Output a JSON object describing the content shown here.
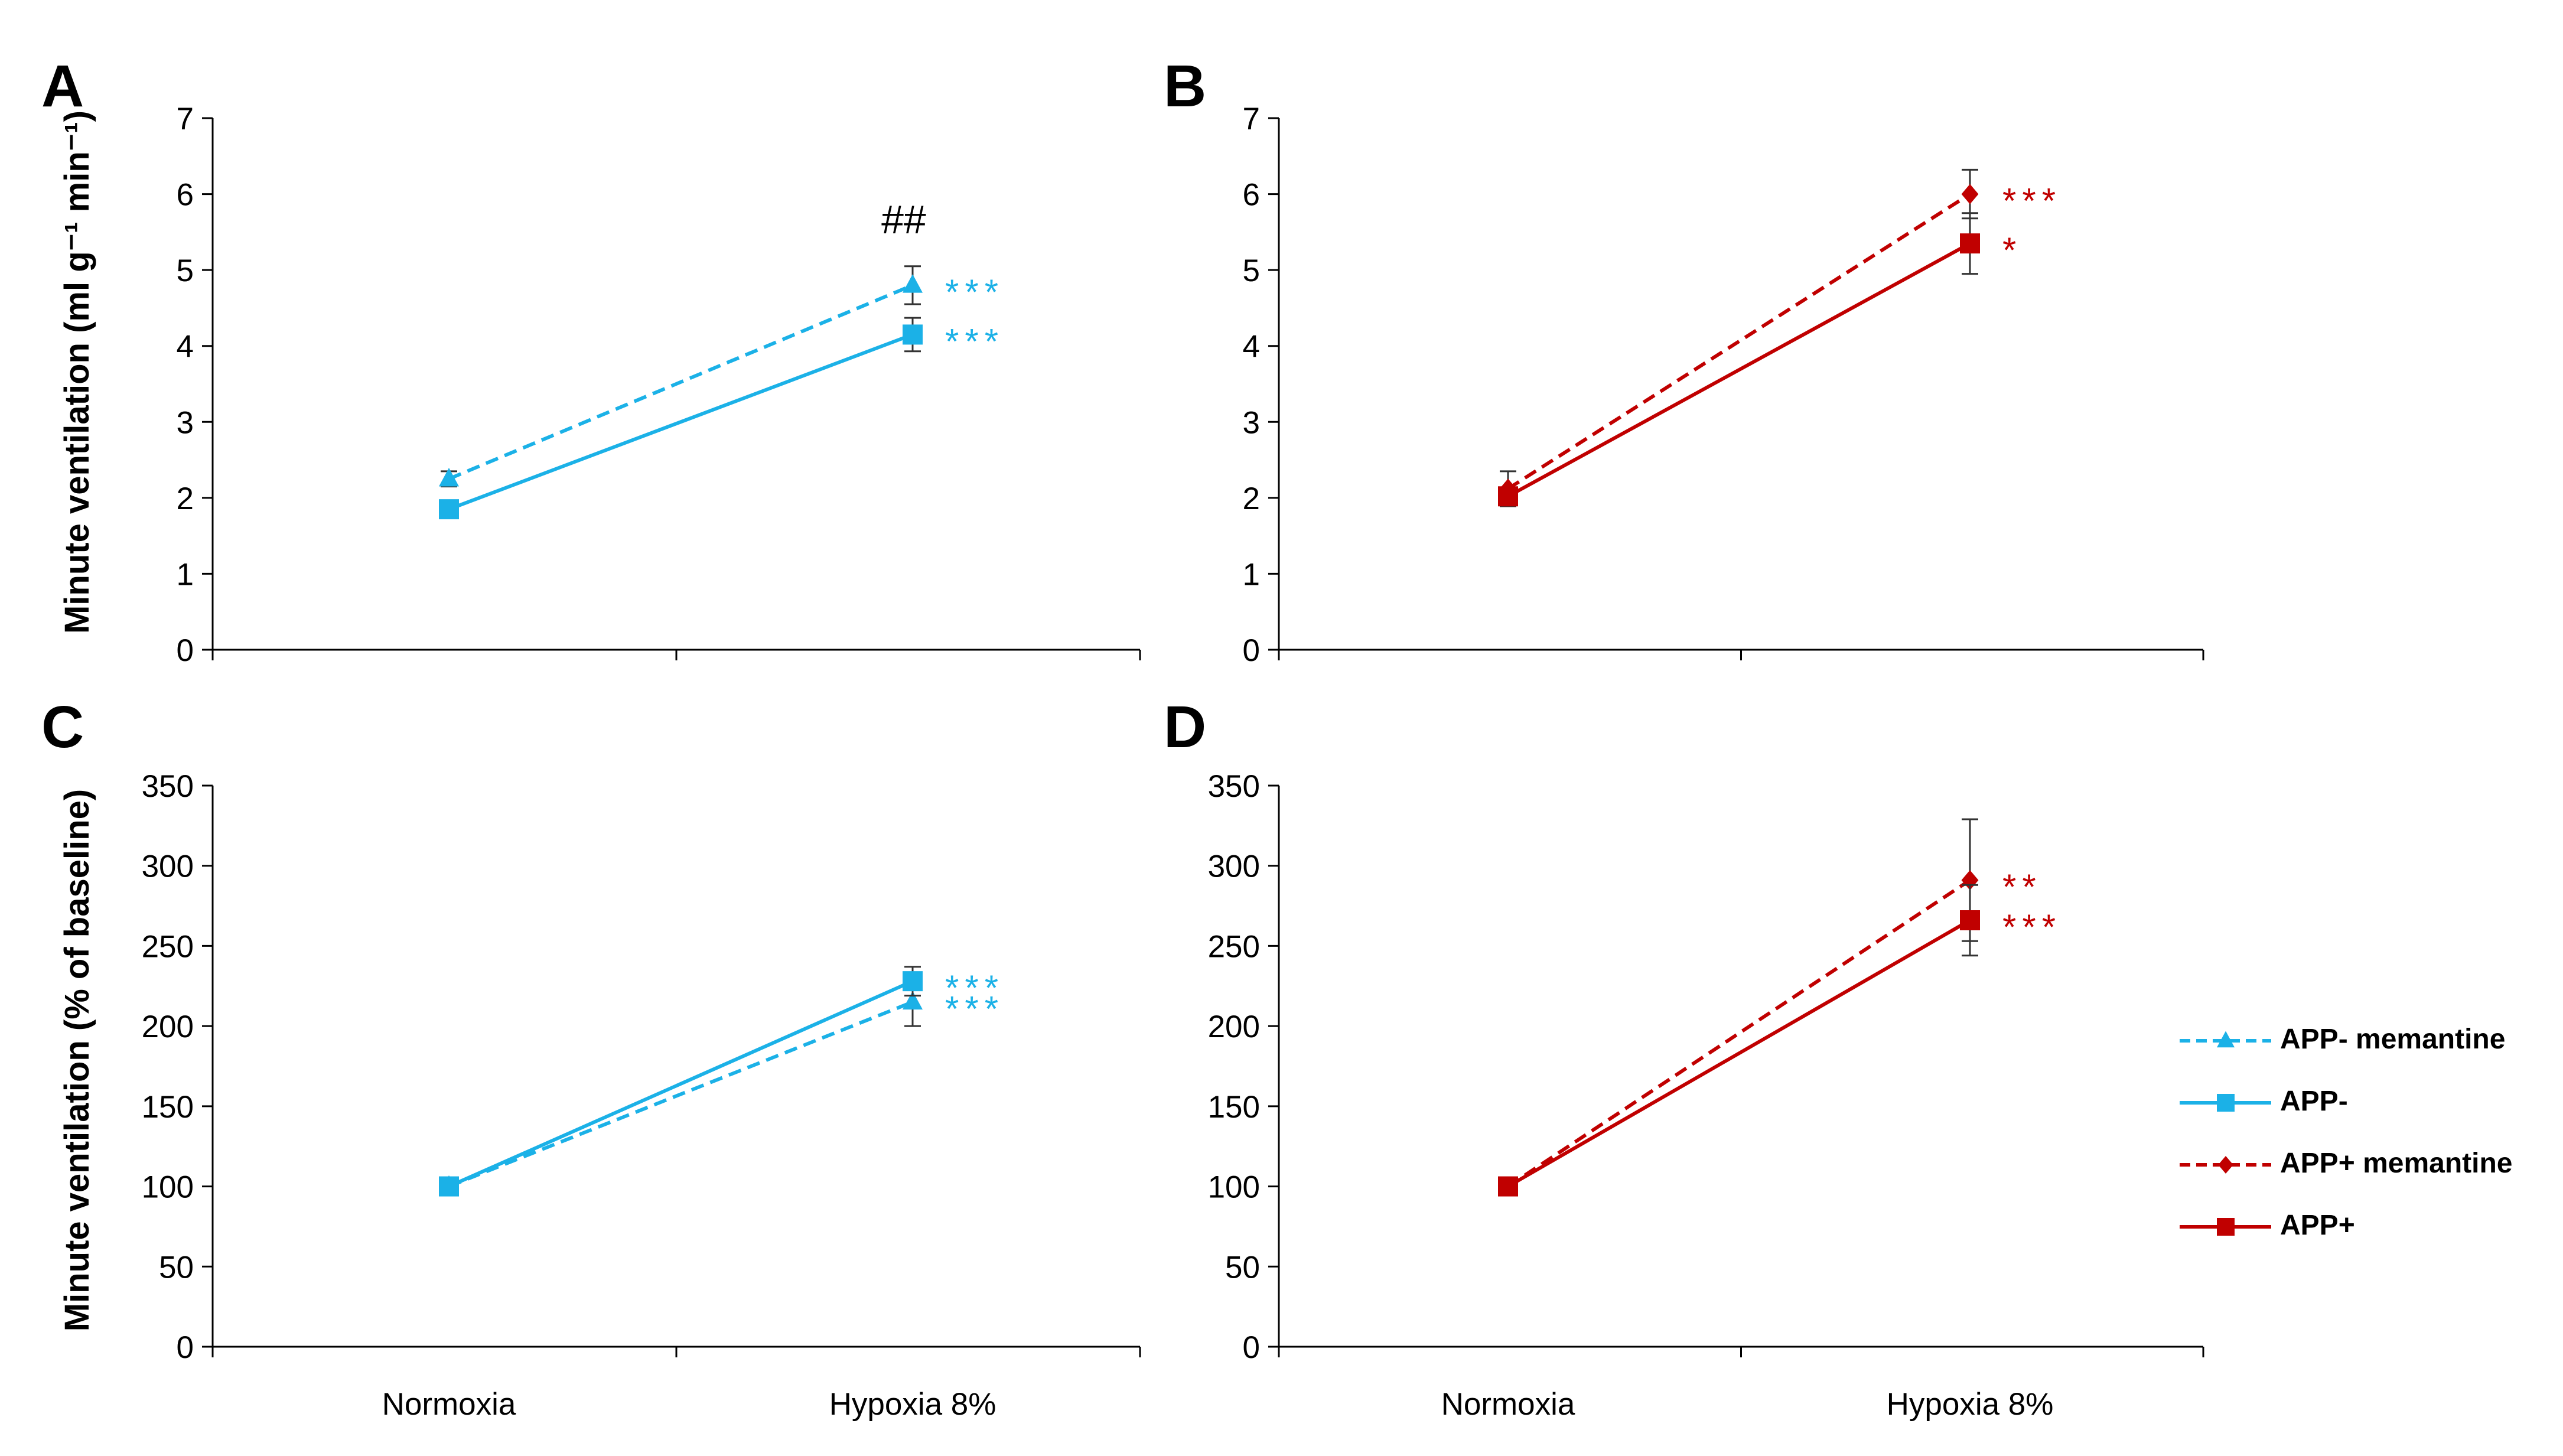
{
  "chart_data": [
    {
      "panel": "A",
      "type": "line",
      "categories": [
        "Normoxia",
        "Hypoxia 8%"
      ],
      "ylabel": "Minute ventilation (ml g⁻¹ min⁻¹)",
      "ylim": [
        0,
        7
      ],
      "yticks": [
        "0",
        "1",
        "2",
        "3",
        "4",
        "5",
        "6",
        "7"
      ],
      "between_group_annotation": "##",
      "series": [
        {
          "name": "APP- memantine",
          "color": "#1BB1E7",
          "dash": true,
          "marker": "triangle",
          "values": [
            2.25,
            4.8
          ],
          "errors": [
            0.1,
            0.25
          ],
          "significance": [
            "",
            "***"
          ]
        },
        {
          "name": "APP-",
          "color": "#1BB1E7",
          "dash": false,
          "marker": "square",
          "values": [
            1.85,
            4.15
          ],
          "errors": [
            0.1,
            0.22
          ],
          "significance": [
            "",
            "***"
          ]
        }
      ]
    },
    {
      "panel": "B",
      "type": "line",
      "categories": [
        "Normoxia",
        "Hypoxia 8%"
      ],
      "ylabel": "",
      "ylim": [
        0,
        7
      ],
      "yticks": [
        "0",
        "1",
        "2",
        "3",
        "4",
        "5",
        "6",
        "7"
      ],
      "series": [
        {
          "name": "APP+ memantine",
          "color": "#C00000",
          "dash": true,
          "marker": "diamond",
          "values": [
            2.12,
            6.0
          ],
          "errors": [
            0.23,
            0.32
          ],
          "significance": [
            "",
            "***"
          ]
        },
        {
          "name": "APP+",
          "color": "#C00000",
          "dash": false,
          "marker": "square",
          "values": [
            2.02,
            5.35
          ],
          "errors": [
            0.1,
            0.4
          ],
          "significance": [
            "",
            "*"
          ]
        }
      ]
    },
    {
      "panel": "C",
      "type": "line",
      "categories": [
        "Normoxia",
        "Hypoxia 8%"
      ],
      "ylabel": "Minute ventilation (% of baseline)",
      "ylim": [
        0,
        350
      ],
      "yticks": [
        "0",
        "50",
        "100",
        "150",
        "200",
        "250",
        "300",
        "350"
      ],
      "series": [
        {
          "name": "APP- memantine",
          "color": "#1BB1E7",
          "dash": true,
          "marker": "triangle",
          "values": [
            100,
            215
          ],
          "errors": [
            0,
            15
          ],
          "significance": [
            "",
            "***"
          ]
        },
        {
          "name": "APP-",
          "color": "#1BB1E7",
          "dash": false,
          "marker": "square",
          "values": [
            100,
            228
          ],
          "errors": [
            0,
            9
          ],
          "significance": [
            "",
            "***"
          ]
        }
      ]
    },
    {
      "panel": "D",
      "type": "line",
      "categories": [
        "Normoxia",
        "Hypoxia 8%"
      ],
      "ylabel": "",
      "ylim": [
        0,
        350
      ],
      "yticks": [
        "0",
        "50",
        "100",
        "150",
        "200",
        "250",
        "300",
        "350"
      ],
      "series": [
        {
          "name": "APP+ memantine",
          "color": "#C00000",
          "dash": true,
          "marker": "diamond",
          "values": [
            100,
            291
          ],
          "errors": [
            0,
            38
          ],
          "significance": [
            "",
            "**"
          ]
        },
        {
          "name": "APP+",
          "color": "#C00000",
          "dash": false,
          "marker": "square",
          "values": [
            100,
            266
          ],
          "errors": [
            0,
            22
          ],
          "significance": [
            "",
            "***"
          ]
        }
      ]
    }
  ],
  "legend": {
    "position": "right",
    "entries": [
      {
        "label": "APP- memantine",
        "color": "#1BB1E7",
        "dash": true,
        "marker": "triangle"
      },
      {
        "label": "APP-",
        "color": "#1BB1E7",
        "dash": false,
        "marker": "square"
      },
      {
        "label": "APP+ memantine",
        "color": "#C00000",
        "dash": true,
        "marker": "diamond"
      },
      {
        "label": "APP+",
        "color": "#C00000",
        "dash": false,
        "marker": "square"
      }
    ]
  }
}
